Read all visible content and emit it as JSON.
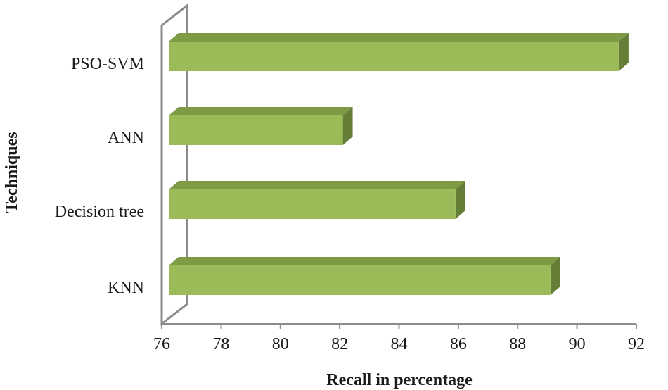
{
  "chart_data": {
    "type": "bar",
    "orientation": "horizontal",
    "style": "3d",
    "categories": [
      "KNN",
      "Decision tree",
      "ANN",
      "PSO-SVM"
    ],
    "values": [
      89.2,
      86.0,
      82.2,
      91.5
    ],
    "xlabel": "Recall in percentage",
    "ylabel": "Techniques",
    "xlim": [
      76,
      92
    ],
    "xticks": [
      76,
      78,
      80,
      82,
      84,
      86,
      88,
      90,
      92
    ],
    "grid": false,
    "legend": false
  },
  "colors": {
    "bar_front": "#9bbb59",
    "bar_top": "#7d9a45",
    "bar_side": "#657e37",
    "wall": "#8c8c8c"
  }
}
